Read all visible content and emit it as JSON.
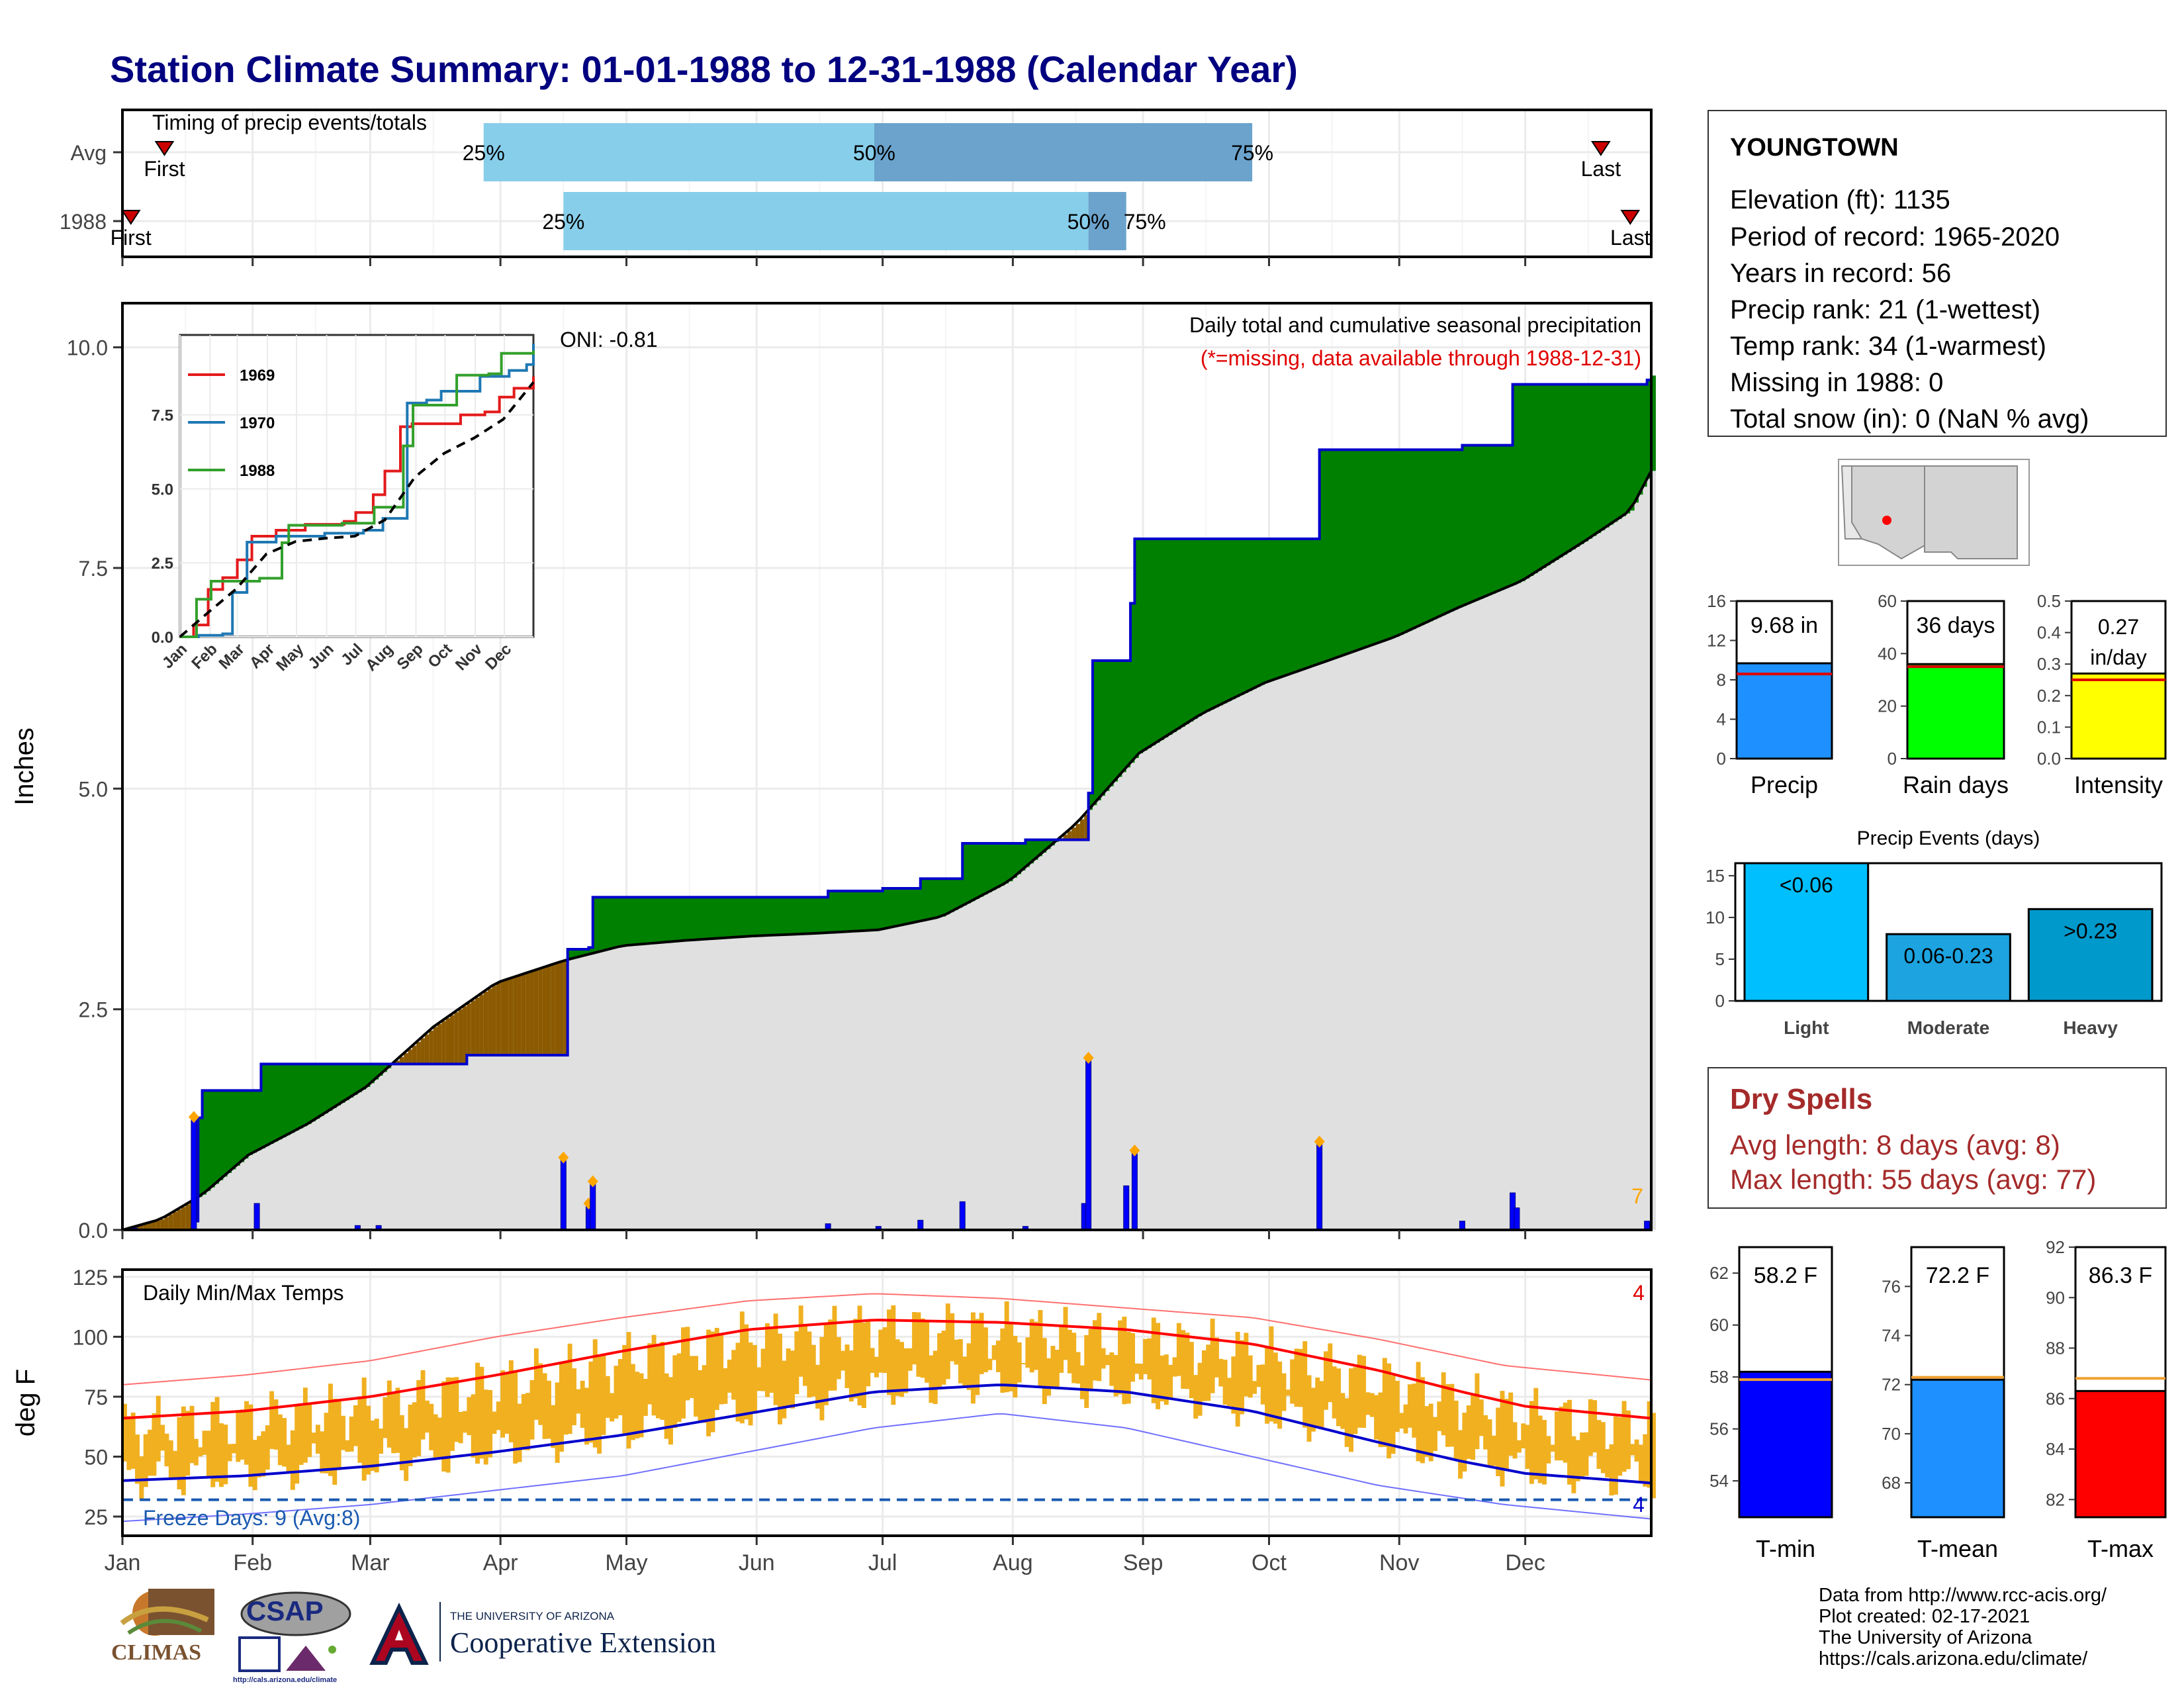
{
  "title": "Station Climate Summary: 01-01-1988 to 12-31-1988 (Calendar Year)",
  "station": {
    "name": "YOUNGTOWN",
    "lines": [
      "Elevation (ft): 1135",
      "Period of record: 1965-2020",
      "Years in record: 56",
      "Precip rank: 21 (1-wettest)",
      "Temp rank: 34 (1-warmest)",
      "Missing in 1988: 0",
      "Total snow (in): 0 (NaN % avg)"
    ]
  },
  "dry_spells": {
    "title": "Dry Spells",
    "avg_length": "Avg length: 8 days (avg: 8)",
    "max_length": "Max length: 55 days (avg: 77)"
  },
  "footer": {
    "lines": [
      "Data from http://www.rcc-acis.org/",
      "Plot created: 02-17-2021",
      "The University of Arizona",
      "https://cals.arizona.edu/climate/"
    ]
  },
  "logos": {
    "climas": "CLIMAS",
    "csap": "CSAP",
    "csap_url": "http://cals.arizona.edu/climate",
    "ua_small": "THE UNIVERSITY OF ARIZONA",
    "ua_big": "Cooperative Extension"
  },
  "colors": {
    "above_avg": "#008000",
    "below_avg": "#8B5A00",
    "climatology": "#e0e0e0",
    "precip_bars": "#0000ff",
    "tmax": "#ff0000",
    "tmin": "#0000cc",
    "temp_bars": "#f0b020",
    "timing_light": "#87ceeb",
    "timing_dark": "#6ba3cc"
  },
  "chart_data": [
    {
      "type": "bar",
      "id": "timing",
      "title": "Timing of precip events/totals",
      "categories": [
        "Avg",
        "1988"
      ],
      "rows": [
        {
          "label": "Avg",
          "first_day": 11,
          "p25": 87,
          "p50": 180,
          "p75": 270,
          "last_day": 353,
          "first_label": "First",
          "last_label": "Last"
        },
        {
          "label": "1988",
          "first_day": 3,
          "p25": 106,
          "p50": 231,
          "p75": 240,
          "last_day": 360,
          "first_label": "First",
          "last_label": "Last"
        }
      ],
      "quantile_labels": [
        "25%",
        "50%",
        "75%"
      ]
    },
    {
      "type": "area",
      "id": "cumulative",
      "title": "Daily total and cumulative seasonal precipitation",
      "subtitle": "(*=missing, data available through 1988-12-31)",
      "annotation": "ONI: -0.81",
      "ylabel": "Inches",
      "ylim": [
        0,
        10.5
      ],
      "yticks": [
        0.0,
        2.5,
        5.0,
        7.5,
        10.0
      ],
      "xlim": [
        1,
        366
      ],
      "corner_count": "7",
      "observed_cumulative": [
        [
          1,
          0
        ],
        [
          18,
          0.1
        ],
        [
          19,
          1.27
        ],
        [
          20,
          1.58
        ],
        [
          33,
          1.58
        ],
        [
          34,
          1.88
        ],
        [
          83,
          1.98
        ],
        [
          84,
          1.98
        ],
        [
          106,
          1.98
        ],
        [
          107,
          3.18
        ],
        [
          112,
          3.2
        ],
        [
          113,
          3.77
        ],
        [
          168,
          3.77
        ],
        [
          169,
          3.84
        ],
        [
          181,
          3.84
        ],
        [
          182,
          3.87
        ],
        [
          190,
          3.87
        ],
        [
          191,
          3.98
        ],
        [
          200,
          3.98
        ],
        [
          201,
          4.38
        ],
        [
          215,
          4.38
        ],
        [
          216,
          4.42
        ],
        [
          230,
          4.42
        ],
        [
          231,
          4.95
        ],
        [
          232,
          6.45
        ],
        [
          240,
          6.45
        ],
        [
          241,
          7.1
        ],
        [
          242,
          7.83
        ],
        [
          285,
          7.83
        ],
        [
          286,
          8.84
        ],
        [
          319,
          8.84
        ],
        [
          320,
          8.89
        ],
        [
          331,
          8.89
        ],
        [
          332,
          9.58
        ],
        [
          364,
          9.63
        ],
        [
          365,
          9.68
        ]
      ],
      "climatology_cumulative": [
        [
          1,
          0
        ],
        [
          10,
          0.12
        ],
        [
          20,
          0.4
        ],
        [
          31,
          0.85
        ],
        [
          45,
          1.2
        ],
        [
          59,
          1.62
        ],
        [
          75,
          2.3
        ],
        [
          90,
          2.8
        ],
        [
          106,
          3.05
        ],
        [
          120,
          3.22
        ],
        [
          135,
          3.28
        ],
        [
          151,
          3.33
        ],
        [
          166,
          3.36
        ],
        [
          181,
          3.4
        ],
        [
          196,
          3.55
        ],
        [
          212,
          3.95
        ],
        [
          228,
          4.6
        ],
        [
          243,
          5.4
        ],
        [
          258,
          5.85
        ],
        [
          273,
          6.2
        ],
        [
          288,
          6.45
        ],
        [
          304,
          6.72
        ],
        [
          319,
          7.05
        ],
        [
          334,
          7.35
        ],
        [
          349,
          7.8
        ],
        [
          360,
          8.15
        ],
        [
          365,
          8.6
        ]
      ],
      "daily_bars": [
        [
          4,
          0.02
        ],
        [
          18,
          1.28
        ],
        [
          33,
          0.3
        ],
        [
          57,
          0.05
        ],
        [
          62,
          0.05
        ],
        [
          106,
          0.82
        ],
        [
          112,
          0.3
        ],
        [
          113,
          0.55
        ],
        [
          169,
          0.07
        ],
        [
          181,
          0.04
        ],
        [
          191,
          0.11
        ],
        [
          201,
          0.32
        ],
        [
          216,
          0.04
        ],
        [
          230,
          0.3
        ],
        [
          231,
          1.95
        ],
        [
          240,
          0.5
        ],
        [
          242,
          0.9
        ],
        [
          286,
          1.0
        ],
        [
          320,
          0.1
        ],
        [
          332,
          0.42
        ],
        [
          333,
          0.25
        ],
        [
          364,
          0.1
        ]
      ],
      "record_markers": [
        18,
        106,
        112,
        113,
        231,
        242,
        286
      ],
      "inset": {
        "type": "line",
        "xlabels": [
          "Jan",
          "Feb",
          "Mar",
          "Apr",
          "May",
          "Jun",
          "Jul",
          "Aug",
          "Sep",
          "Oct",
          "Nov",
          "Dec"
        ],
        "yticks": [
          0.0,
          2.5,
          5.0,
          7.5
        ],
        "ylim": [
          0,
          10.2
        ],
        "series": [
          {
            "name": "1969",
            "color": "#e31a1c",
            "values": [
              [
                1,
                0
              ],
              [
                15,
                0.4
              ],
              [
                30,
                1.6
              ],
              [
                45,
                2.0
              ],
              [
                60,
                2.6
              ],
              [
                75,
                3.4
              ],
              [
                100,
                3.6
              ],
              [
                130,
                3.8
              ],
              [
                170,
                3.9
              ],
              [
                182,
                4.2
              ],
              [
                200,
                4.8
              ],
              [
                212,
                5.6
              ],
              [
                228,
                7.1
              ],
              [
                240,
                7.2
              ],
              [
                275,
                7.2
              ],
              [
                290,
                7.5
              ],
              [
                315,
                7.6
              ],
              [
                330,
                8.1
              ],
              [
                345,
                8.4
              ],
              [
                365,
                8.8
              ]
            ]
          },
          {
            "name": "1970",
            "color": "#1f78b4",
            "values": [
              [
                1,
                0
              ],
              [
                20,
                0.05
              ],
              [
                45,
                0.1
              ],
              [
                55,
                1.5
              ],
              [
                70,
                3.2
              ],
              [
                100,
                3.4
              ],
              [
                150,
                3.5
              ],
              [
                190,
                3.6
              ],
              [
                210,
                4.0
              ],
              [
                235,
                7.9
              ],
              [
                255,
                8.0
              ],
              [
                270,
                8.3
              ],
              [
                310,
                8.8
              ],
              [
                340,
                9.0
              ],
              [
                358,
                9.2
              ],
              [
                365,
                9.9
              ]
            ]
          },
          {
            "name": "1988",
            "color": "#33a02c",
            "values": [
              [
                1,
                0
              ],
              [
                18,
                1.27
              ],
              [
                33,
                1.88
              ],
              [
                83,
                1.98
              ],
              [
                106,
                3.18
              ],
              [
                113,
                3.77
              ],
              [
                168,
                3.84
              ],
              [
                201,
                4.38
              ],
              [
                231,
                6.45
              ],
              [
                241,
                7.83
              ],
              [
                285,
                7.83
              ],
              [
                286,
                8.84
              ],
              [
                319,
                8.89
              ],
              [
                332,
                9.58
              ],
              [
                365,
                9.68
              ]
            ]
          },
          {
            "name": "Avg",
            "color": "#000000",
            "dashed": true,
            "values": [
              [
                1,
                0
              ],
              [
                31,
                0.85
              ],
              [
                59,
                1.62
              ],
              [
                90,
                2.8
              ],
              [
                120,
                3.22
              ],
              [
                151,
                3.33
              ],
              [
                181,
                3.4
              ],
              [
                212,
                3.95
              ],
              [
                243,
                5.4
              ],
              [
                273,
                6.2
              ],
              [
                304,
                6.72
              ],
              [
                334,
                7.35
              ],
              [
                365,
                8.6
              ]
            ]
          }
        ]
      }
    },
    {
      "type": "line",
      "id": "temps",
      "title": "Daily Min/Max Temps",
      "ylabel": "deg F",
      "ylim": [
        17,
        128
      ],
      "yticks": [
        25,
        50,
        75,
        100,
        125
      ],
      "xlabels": [
        "Jan",
        "Feb",
        "Mar",
        "Apr",
        "May",
        "Jun",
        "Jul",
        "Aug",
        "Sep",
        "Oct",
        "Nov",
        "Dec"
      ],
      "month_start_days": [
        1,
        32,
        60,
        91,
        121,
        152,
        182,
        213,
        244,
        274,
        305,
        335
      ],
      "freeze_label": "Freeze Days: 9 (Avg:8)",
      "freeze_line": 32,
      "record_high_count": "4",
      "record_low_count": "4",
      "normal_tmax": [
        [
          1,
          66
        ],
        [
          30,
          69
        ],
        [
          60,
          75
        ],
        [
          90,
          84
        ],
        [
          120,
          94
        ],
        [
          150,
          103
        ],
        [
          180,
          107
        ],
        [
          210,
          106
        ],
        [
          240,
          103
        ],
        [
          270,
          97
        ],
        [
          300,
          86
        ],
        [
          320,
          77
        ],
        [
          335,
          71
        ],
        [
          365,
          66
        ]
      ],
      "normal_tmin": [
        [
          1,
          40
        ],
        [
          30,
          42
        ],
        [
          60,
          46
        ],
        [
          90,
          52
        ],
        [
          120,
          59
        ],
        [
          150,
          68
        ],
        [
          180,
          77
        ],
        [
          210,
          80
        ],
        [
          240,
          77
        ],
        [
          270,
          69
        ],
        [
          300,
          56
        ],
        [
          320,
          48
        ],
        [
          335,
          43
        ],
        [
          365,
          39
        ]
      ],
      "record_tmax": [
        [
          1,
          80
        ],
        [
          30,
          84
        ],
        [
          60,
          90
        ],
        [
          90,
          100
        ],
        [
          120,
          108
        ],
        [
          150,
          115
        ],
        [
          180,
          118
        ],
        [
          210,
          116
        ],
        [
          240,
          112
        ],
        [
          270,
          108
        ],
        [
          300,
          99
        ],
        [
          330,
          88
        ],
        [
          365,
          82
        ]
      ],
      "record_tmin": [
        [
          1,
          23
        ],
        [
          30,
          26
        ],
        [
          60,
          30
        ],
        [
          90,
          36
        ],
        [
          120,
          42
        ],
        [
          150,
          52
        ],
        [
          180,
          62
        ],
        [
          210,
          68
        ],
        [
          240,
          62
        ],
        [
          270,
          50
        ],
        [
          300,
          38
        ],
        [
          330,
          30
        ],
        [
          365,
          24
        ]
      ]
    },
    {
      "type": "bar",
      "id": "precip_total",
      "categories": [
        "Precip"
      ],
      "values": [
        9.68
      ],
      "avg": 8.6,
      "label": "9.68 in",
      "ylim": [
        0,
        16
      ],
      "yticks": [
        0,
        4,
        8,
        12,
        16
      ],
      "color": "#1e90ff"
    },
    {
      "type": "bar",
      "id": "rain_days",
      "categories": [
        "Rain days"
      ],
      "values": [
        36
      ],
      "avg": 35,
      "label": "36 days",
      "ylim": [
        0,
        60
      ],
      "yticks": [
        0,
        20,
        40,
        60
      ],
      "color": "#00ff00"
    },
    {
      "type": "bar",
      "id": "intensity",
      "categories": [
        "Intensity"
      ],
      "values": [
        0.27
      ],
      "avg": 0.25,
      "label": "0.27 in/day",
      "ylim": [
        0,
        0.5
      ],
      "yticks": [
        0.0,
        0.1,
        0.2,
        0.3,
        0.4,
        0.5
      ],
      "color": "#ffff00"
    },
    {
      "type": "bar",
      "id": "precip_events",
      "title": "Precip Events (days)",
      "categories": [
        "Light",
        "Moderate",
        "Heavy"
      ],
      "labels": [
        "<0.06",
        "0.06-0.23",
        ">0.23"
      ],
      "values": [
        17,
        8,
        11
      ],
      "ylim": [
        0,
        16.5
      ],
      "yticks": [
        0,
        5,
        10,
        15
      ],
      "colors": [
        "#00bfff",
        "#1ca3e0",
        "#0099cc"
      ]
    },
    {
      "type": "bar",
      "id": "tmin",
      "categories": [
        "T-min"
      ],
      "values": [
        58.2
      ],
      "avg": 57.9,
      "label": "58.2 F",
      "ylim": [
        52.6,
        63
      ],
      "yticks": [
        54,
        56,
        58,
        60,
        62
      ],
      "color": "#0000ff"
    },
    {
      "type": "bar",
      "id": "tmean",
      "categories": [
        "T-mean"
      ],
      "values": [
        72.2
      ],
      "avg": 72.3,
      "label": "72.2 F",
      "ylim": [
        66.6,
        77.6
      ],
      "yticks": [
        68,
        70,
        72,
        74,
        76
      ],
      "color": "#1e90ff"
    },
    {
      "type": "bar",
      "id": "tmax",
      "categories": [
        "T-max"
      ],
      "values": [
        86.3
      ],
      "avg": 86.8,
      "label": "86.3 F",
      "ylim": [
        81.3,
        92
      ],
      "yticks": [
        82,
        84,
        86,
        88,
        90,
        92
      ],
      "color": "#ff0000"
    }
  ]
}
